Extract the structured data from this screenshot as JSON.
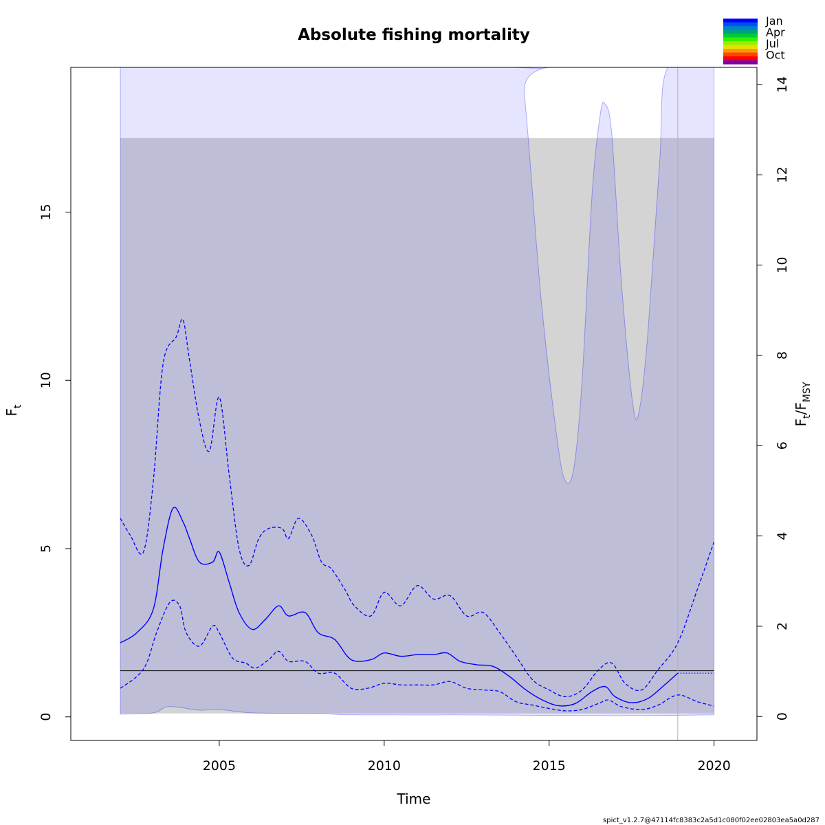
{
  "chart_data": {
    "type": "line",
    "title": "Absolute fishing mortality",
    "xlabel": "Time",
    "ylabel_main": "F",
    "ylabel_sub": "t",
    "ylabel_right": {
      "main1": "F",
      "sub1": "t",
      "slash": "/",
      "main2": "F",
      "sub2": "MSY"
    },
    "xlim": [
      2000.5,
      2021.3
    ],
    "ylim": [
      -0.7,
      19.3
    ],
    "ylim_right": [
      -0.53,
      14.38
    ],
    "x_ticks": [
      2005,
      2010,
      2015,
      2020
    ],
    "x_tick_labels": [
      "2005",
      "2010",
      "2015",
      "2020"
    ],
    "y_ticks": [
      0,
      5,
      10,
      15
    ],
    "y_tick_labels": [
      "0",
      "5",
      "10",
      "15"
    ],
    "y_right_ticks": [
      0,
      2,
      4,
      6,
      8,
      10,
      12,
      14
    ],
    "y_right_tick_labels": [
      "0",
      "2",
      "4",
      "6",
      "8",
      "10",
      "12",
      "14"
    ],
    "fmsy": 1.37,
    "fmsy_ci_band": {
      "x_start": 2002.0,
      "x_end": 2020.0,
      "lower": 0.1,
      "upper": 17.2
    },
    "last_obs_x": 2018.9,
    "series": [
      {
        "role": "estimate",
        "style": "solid",
        "x": [
          2002.0,
          2002.5,
          2003.0,
          2003.3,
          2003.6,
          2003.9,
          2004.1,
          2004.4,
          2004.8,
          2005.0,
          2005.3,
          2005.6,
          2006.0,
          2006.4,
          2006.8,
          2007.1,
          2007.6,
          2008.0,
          2008.5,
          2009.0,
          2009.6,
          2010.0,
          2010.5,
          2011.0,
          2011.5,
          2011.9,
          2012.3,
          2012.8,
          2013.3,
          2013.8,
          2014.3,
          2014.8,
          2015.3,
          2015.8,
          2016.3,
          2016.7,
          2017.0,
          2017.5,
          2018.0,
          2018.5,
          2018.9
        ],
        "y": [
          2.2,
          2.5,
          3.2,
          5.0,
          6.2,
          5.8,
          5.3,
          4.6,
          4.6,
          4.9,
          4.0,
          3.1,
          2.6,
          2.9,
          3.3,
          3.0,
          3.1,
          2.5,
          2.3,
          1.7,
          1.7,
          1.9,
          1.8,
          1.85,
          1.85,
          1.9,
          1.65,
          1.55,
          1.5,
          1.2,
          0.8,
          0.5,
          0.33,
          0.4,
          0.75,
          0.9,
          0.6,
          0.42,
          0.55,
          0.95,
          1.3
        ]
      },
      {
        "role": "estimate-projection",
        "style": "dotted",
        "x": [
          2018.9,
          2019.5,
          2020.0
        ],
        "y": [
          1.3,
          1.3,
          1.3
        ]
      },
      {
        "role": "upper-ci",
        "style": "dashed",
        "x": [
          2002.0,
          2002.3,
          2002.7,
          2003.0,
          2003.3,
          2003.7,
          2003.9,
          2004.1,
          2004.4,
          2004.7,
          2005.0,
          2005.3,
          2005.6,
          2005.9,
          2006.2,
          2006.5,
          2006.9,
          2007.1,
          2007.4,
          2007.8,
          2008.1,
          2008.4,
          2008.8,
          2009.1,
          2009.6,
          2010.0,
          2010.5,
          2011.0,
          2011.5,
          2012.0,
          2012.5,
          2013.0,
          2013.5,
          2014.0,
          2014.5,
          2015.0,
          2015.5,
          2016.0,
          2016.5,
          2016.9,
          2017.3,
          2017.8,
          2018.3,
          2018.9,
          2019.5,
          2020.0
        ],
        "y": [
          5.9,
          5.4,
          4.9,
          7.0,
          10.5,
          11.3,
          11.8,
          10.6,
          8.8,
          7.9,
          9.5,
          7.2,
          5.0,
          4.5,
          5.3,
          5.6,
          5.6,
          5.3,
          5.9,
          5.4,
          4.6,
          4.4,
          3.8,
          3.3,
          3.0,
          3.7,
          3.3,
          3.9,
          3.5,
          3.6,
          3.0,
          3.1,
          2.5,
          1.8,
          1.1,
          0.8,
          0.6,
          0.8,
          1.4,
          1.6,
          1.0,
          0.8,
          1.4,
          2.2,
          3.8,
          5.2
        ]
      },
      {
        "role": "lower-ci",
        "style": "dashed",
        "x": [
          2002.0,
          2002.5,
          2002.8,
          2003.1,
          2003.5,
          2003.8,
          2004.0,
          2004.4,
          2004.8,
          2005.0,
          2005.4,
          2005.8,
          2006.1,
          2006.5,
          2006.8,
          2007.1,
          2007.6,
          2008.0,
          2008.5,
          2009.0,
          2009.5,
          2010.0,
          2010.5,
          2011.0,
          2011.5,
          2012.0,
          2012.5,
          2013.0,
          2013.5,
          2014.0,
          2014.5,
          2015.0,
          2015.5,
          2016.0,
          2016.5,
          2016.8,
          2017.2,
          2017.8,
          2018.3,
          2018.9,
          2019.5,
          2020.0
        ],
        "y": [
          0.85,
          1.2,
          1.6,
          2.5,
          3.4,
          3.3,
          2.5,
          2.1,
          2.7,
          2.5,
          1.75,
          1.6,
          1.45,
          1.7,
          1.95,
          1.65,
          1.65,
          1.3,
          1.3,
          0.85,
          0.85,
          1.0,
          0.95,
          0.95,
          0.95,
          1.05,
          0.85,
          0.8,
          0.75,
          0.45,
          0.35,
          0.25,
          0.18,
          0.22,
          0.4,
          0.5,
          0.3,
          0.22,
          0.35,
          0.65,
          0.45,
          0.32
        ]
      }
    ],
    "ci_envelope": {
      "upper_x": [
        2002.0,
        2014.0,
        2014.25,
        2014.75,
        2015.25,
        2015.5,
        2015.75,
        2016.0,
        2016.3,
        2016.55,
        2016.7,
        2016.9,
        2017.2,
        2017.55,
        2017.75,
        2018.0,
        2018.35,
        2018.6,
        2020.0
      ],
      "upper_y": [
        19.3,
        19.3,
        18.5,
        12.5,
        8.2,
        7.0,
        7.4,
        10.0,
        15.5,
        17.9,
        18.2,
        17.3,
        12.8,
        9.2,
        9.2,
        11.5,
        16.5,
        19.3,
        19.3
      ],
      "lower_x": [
        2002.0,
        2003.0,
        2003.4,
        2003.8,
        2004.4,
        2005.0,
        2006.0,
        2008.0,
        2009.0,
        2012.0,
        2014.0,
        2016.0,
        2018.0,
        2020.0
      ],
      "lower_y": [
        0.08,
        0.12,
        0.3,
        0.28,
        0.2,
        0.22,
        0.12,
        0.1,
        0.06,
        0.06,
        0.05,
        0.04,
        0.04,
        0.06
      ]
    },
    "legend": {
      "placement": "top-right",
      "labels": [
        "Jan",
        "Apr",
        "Jul",
        "Oct"
      ],
      "colors": [
        "#0000ff",
        "#0050ee",
        "#0080d0",
        "#00a080",
        "#00cc30",
        "#33ee00",
        "#99ee00",
        "#e8e000",
        "#ff9900",
        "#ff4400",
        "#ff0000",
        "#8000a0"
      ]
    },
    "colors": {
      "estimate": "#0000ff",
      "ci_fill": "#0000ff",
      "band": "#b0b0b0",
      "fmsy_line": "#000000"
    },
    "footer": "spict_v1.2.7@47114fc8383c2a5d1c080f02ee02803ea5a0d287"
  }
}
